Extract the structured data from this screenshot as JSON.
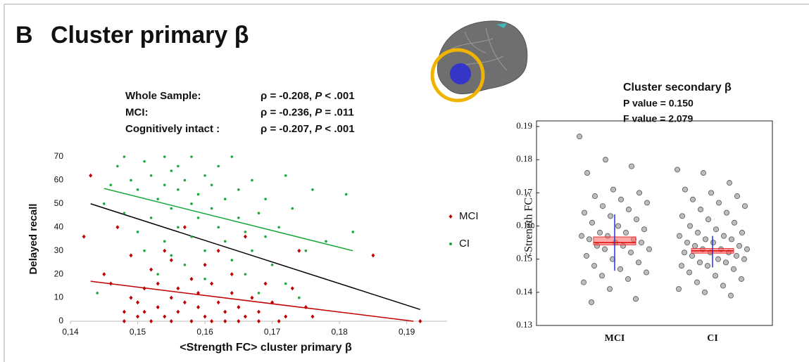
{
  "chart_data": [
    {
      "type": "scatter",
      "panel": "B",
      "title": "Cluster primary β",
      "stats": [
        {
          "label": "Whole Sample:",
          "parts": [
            "ρ = -0.208, ",
            "P",
            " < .001"
          ]
        },
        {
          "label": "MCI:",
          "parts": [
            "ρ = -0.236, ",
            "P",
            " = .011"
          ]
        },
        {
          "label": "Cognitively intact :",
          "parts": [
            "ρ = -0.207, ",
            "P",
            " < .001"
          ]
        }
      ],
      "x_label": "<Strength FC> cluster primary β",
      "y_label": "Delayed recall",
      "xlim": [
        0.14,
        0.196
      ],
      "ylim": [
        0,
        70
      ],
      "xticks": [
        {
          "value": 0.14,
          "label": "0,14"
        },
        {
          "value": 0.15,
          "label": "0,15"
        },
        {
          "value": 0.16,
          "label": "0,16"
        },
        {
          "value": 0.17,
          "label": "0,17"
        },
        {
          "value": 0.18,
          "label": "0,18"
        },
        {
          "value": 0.19,
          "label": "0,19"
        }
      ],
      "yticks": [
        0,
        10,
        20,
        30,
        40,
        50,
        60,
        70
      ],
      "legend": "right",
      "series": [
        {
          "name": "MCI",
          "color": "#c00000",
          "marker": "diamond",
          "x": [
            0.142,
            0.143,
            0.145,
            0.146,
            0.147,
            0.148,
            0.148,
            0.149,
            0.149,
            0.15,
            0.15,
            0.151,
            0.151,
            0.152,
            0.152,
            0.153,
            0.153,
            0.154,
            0.154,
            0.155,
            0.155,
            0.155,
            0.156,
            0.156,
            0.157,
            0.157,
            0.158,
            0.158,
            0.159,
            0.159,
            0.16,
            0.16,
            0.161,
            0.161,
            0.162,
            0.162,
            0.163,
            0.163,
            0.164,
            0.164,
            0.165,
            0.165,
            0.166,
            0.166,
            0.167,
            0.168,
            0.168,
            0.169,
            0.17,
            0.171,
            0.172,
            0.173,
            0.174,
            0.175,
            0.176,
            0.185,
            0.192
          ],
          "values": [
            36,
            62,
            20,
            16,
            40,
            0,
            4,
            10,
            28,
            8,
            2,
            14,
            4,
            0,
            22,
            6,
            16,
            30,
            2,
            10,
            0,
            26,
            14,
            4,
            8,
            40,
            0,
            18,
            6,
            12,
            2,
            24,
            0,
            16,
            8,
            30,
            4,
            0,
            12,
            20,
            0,
            6,
            36,
            2,
            10,
            0,
            4,
            16,
            8,
            0,
            2,
            14,
            30,
            6,
            2,
            28,
            0
          ]
        },
        {
          "name": "CI",
          "color": "#1aa83a",
          "marker": "dot",
          "x": [
            0.144,
            0.145,
            0.146,
            0.147,
            0.148,
            0.148,
            0.149,
            0.15,
            0.15,
            0.151,
            0.151,
            0.152,
            0.152,
            0.153,
            0.153,
            0.154,
            0.154,
            0.154,
            0.155,
            0.155,
            0.155,
            0.156,
            0.156,
            0.156,
            0.157,
            0.157,
            0.158,
            0.158,
            0.158,
            0.159,
            0.159,
            0.16,
            0.16,
            0.16,
            0.161,
            0.161,
            0.162,
            0.162,
            0.163,
            0.163,
            0.164,
            0.164,
            0.165,
            0.165,
            0.166,
            0.166,
            0.167,
            0.167,
            0.168,
            0.168,
            0.169,
            0.169,
            0.17,
            0.171,
            0.172,
            0.172,
            0.173,
            0.174,
            0.175,
            0.176,
            0.178,
            0.181,
            0.182
          ],
          "values": [
            12,
            50,
            58,
            66,
            70,
            46,
            60,
            38,
            56,
            68,
            30,
            62,
            44,
            52,
            20,
            70,
            58,
            34,
            64,
            48,
            28,
            56,
            40,
            66,
            60,
            24,
            50,
            36,
            70,
            54,
            44,
            62,
            30,
            18,
            58,
            48,
            40,
            66,
            52,
            34,
            70,
            26,
            44,
            56,
            38,
            20,
            60,
            30,
            46,
            12,
            36,
            52,
            24,
            40,
            62,
            16,
            48,
            10,
            30,
            56,
            34,
            54,
            38
          ]
        }
      ],
      "fit_lines": [
        {
          "color": "#c00000",
          "x": [
            0.143,
            0.191
          ],
          "values": [
            17,
            0
          ]
        },
        {
          "color": "#000000",
          "x": [
            0.143,
            0.192
          ],
          "values": [
            50,
            5
          ]
        },
        {
          "color": "#1aa83a",
          "x": [
            0.145,
            0.182
          ],
          "values": [
            56.5,
            30
          ]
        }
      ]
    },
    {
      "type": "strip",
      "title": "Cluster secondary β",
      "subtitles": [
        "P value = 0.150",
        "F value = 2.079"
      ],
      "y_label": "<Strength FC>",
      "ylim": [
        0.13,
        0.19
      ],
      "yticks": [
        0.13,
        0.14,
        0.15,
        0.16,
        0.17,
        0.18,
        0.19
      ],
      "categories": [
        "MCI",
        "CI"
      ],
      "groups": [
        {
          "values": [
            0.187,
            0.18,
            0.178,
            0.176,
            0.171,
            0.17,
            0.169,
            0.168,
            0.167,
            0.166,
            0.165,
            0.164,
            0.163,
            0.162,
            0.161,
            0.16,
            0.159,
            0.158,
            0.158,
            0.157,
            0.157,
            0.156,
            0.156,
            0.155,
            0.155,
            0.154,
            0.154,
            0.153,
            0.153,
            0.152,
            0.151,
            0.15,
            0.149,
            0.148,
            0.147,
            0.146,
            0.145,
            0.144,
            0.143,
            0.141,
            0.138,
            0.137
          ],
          "mean": 0.155,
          "band": [
            0.1543,
            0.1567
          ],
          "whisker": [
            0.1465,
            0.1635
          ]
        },
        {
          "values": [
            0.177,
            0.176,
            0.173,
            0.171,
            0.17,
            0.169,
            0.168,
            0.167,
            0.166,
            0.165,
            0.164,
            0.163,
            0.162,
            0.161,
            0.16,
            0.159,
            0.158,
            0.158,
            0.157,
            0.157,
            0.156,
            0.156,
            0.155,
            0.155,
            0.154,
            0.154,
            0.153,
            0.153,
            0.153,
            0.152,
            0.152,
            0.152,
            0.151,
            0.151,
            0.15,
            0.15,
            0.149,
            0.149,
            0.148,
            0.148,
            0.147,
            0.146,
            0.145,
            0.144,
            0.143,
            0.142,
            0.141,
            0.14,
            0.139
          ],
          "mean": 0.1525,
          "band": [
            0.1518,
            0.1532
          ],
          "whisker": [
            0.1475,
            0.157
          ]
        }
      ]
    }
  ]
}
